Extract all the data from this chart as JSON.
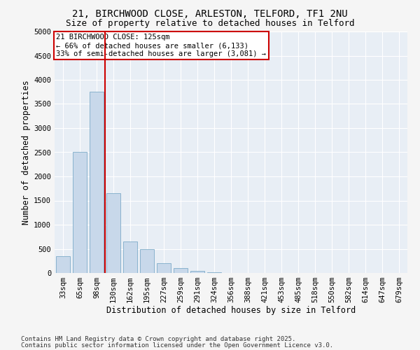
{
  "title1": "21, BIRCHWOOD CLOSE, ARLESTON, TELFORD, TF1 2NU",
  "title2": "Size of property relative to detached houses in Telford",
  "xlabel": "Distribution of detached houses by size in Telford",
  "ylabel": "Number of detached properties",
  "categories": [
    "33sqm",
    "65sqm",
    "98sqm",
    "130sqm",
    "162sqm",
    "195sqm",
    "227sqm",
    "259sqm",
    "291sqm",
    "324sqm",
    "356sqm",
    "388sqm",
    "421sqm",
    "453sqm",
    "485sqm",
    "518sqm",
    "550sqm",
    "582sqm",
    "614sqm",
    "647sqm",
    "679sqm"
  ],
  "values": [
    350,
    2500,
    3750,
    1650,
    650,
    500,
    200,
    100,
    50,
    20,
    5,
    2,
    1,
    0,
    0,
    0,
    0,
    0,
    0,
    0,
    0
  ],
  "bar_color": "#c8d8ea",
  "bar_edge_color": "#6a9fc0",
  "red_line_index": 2.5,
  "annotation_line1": "21 BIRCHWOOD CLOSE: 125sqm",
  "annotation_line2": "← 66% of detached houses are smaller (6,133)",
  "annotation_line3": "33% of semi-detached houses are larger (3,081) →",
  "annotation_box_color": "#ffffff",
  "annotation_box_edge_color": "#cc0000",
  "vline_color": "#cc0000",
  "ylim": [
    0,
    5000
  ],
  "yticks": [
    0,
    500,
    1000,
    1500,
    2000,
    2500,
    3000,
    3500,
    4000,
    4500,
    5000
  ],
  "footnote1": "Contains HM Land Registry data © Crown copyright and database right 2025.",
  "footnote2": "Contains public sector information licensed under the Open Government Licence v3.0.",
  "bg_color": "#e8eef5",
  "fig_bg_color": "#f5f5f5",
  "title_fontsize": 10,
  "subtitle_fontsize": 9,
  "axis_label_fontsize": 8.5,
  "tick_fontsize": 7.5,
  "annot_fontsize": 7.5,
  "footnote_fontsize": 6.5
}
